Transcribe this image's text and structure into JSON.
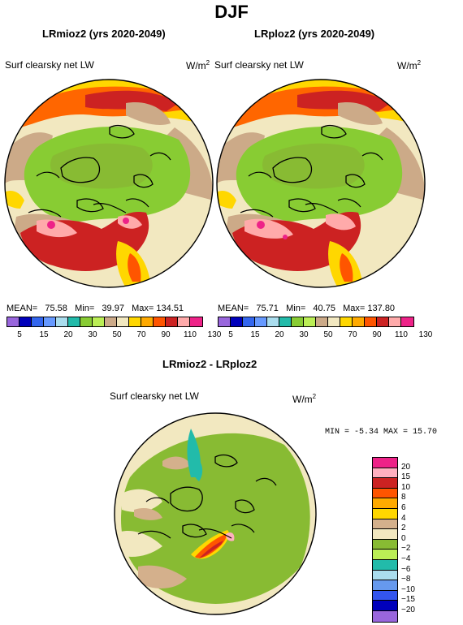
{
  "figure": {
    "title": "DJF"
  },
  "panels": [
    {
      "title": "LRmioz2 (yrs 2020-2049)",
      "variable": "Surf clearsky net LW",
      "units": "W/m",
      "units_sup": "2",
      "stats": {
        "mean_label": "MEAN=",
        "mean": "75.58",
        "min_label": "Min=",
        "min": "39.97",
        "max_label": "Max=",
        "max": "134.51"
      }
    },
    {
      "title": "LRploz2 (yrs 2020-2049)",
      "variable": "Surf clearsky net LW",
      "units": "W/m",
      "units_sup": "2",
      "stats": {
        "mean_label": "MEAN=",
        "mean": "75.71",
        "min_label": "Min=",
        "min": "40.75",
        "max_label": "Max=",
        "max": "137.80"
      }
    }
  ],
  "diff_panel": {
    "title": "LRmioz2 - LRploz2",
    "variable": "Surf clearsky net LW",
    "units": "W/m",
    "units_sup": "2",
    "stats_text": "MIN =   -5.34  MAX =   15.70"
  },
  "colorbar_abs": {
    "labels": [
      "5",
      "15",
      "20",
      "30",
      "50",
      "70",
      "90",
      "110",
      "130"
    ],
    "colors": [
      "#9966dd",
      "#0000bb",
      "#3366ee",
      "#6699ff",
      "#aaddee",
      "#22bbaa",
      "#88cc33",
      "#bbee55",
      "#ccaa88",
      "#f2e8c0",
      "#ffd700",
      "#ffaa00",
      "#ff5500",
      "#cc2222",
      "#ffaaaa",
      "#ee2288"
    ]
  },
  "colorbar_diff": {
    "labels": [
      "20",
      "15",
      "10",
      "8",
      "6",
      "4",
      "2",
      "0",
      "−2",
      "−4",
      "−6",
      "−8",
      "−10",
      "−15",
      "−20"
    ],
    "colors": [
      "#ee2288",
      "#ffb0c0",
      "#cc2222",
      "#ff5500",
      "#ffaa00",
      "#ffd700",
      "#d4b08c",
      "#f2e8c0",
      "#88bb33",
      "#bbee55",
      "#22bbaa",
      "#aaddee",
      "#6699ee",
      "#3355ee",
      "#0000bb",
      "#9966dd"
    ]
  }
}
